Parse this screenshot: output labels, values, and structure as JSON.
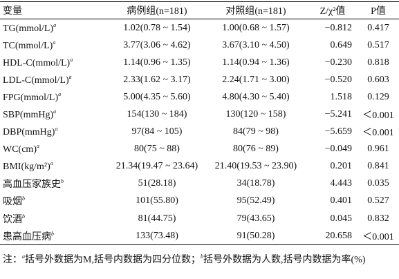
{
  "table": {
    "header": [
      "变量",
      "病例组(n=181)",
      "对照组(n=181)",
      "Z/χ²值",
      "P值"
    ],
    "rows": [
      [
        {
          "name": "TG(mmol/L)",
          "note": "a"
        },
        "1.02(0.78 ~ 1.54)",
        "1.00(0.68 ~ 1.57)",
        "−0.812",
        "0.417"
      ],
      [
        {
          "name": "TC(mmol/L)",
          "note": "a"
        },
        "3.77(3.06 ~ 4.62)",
        "3.67(3.10 ~ 4.50)",
        "0.649",
        "0.517"
      ],
      [
        {
          "name": "HDL-C(mmol/L)",
          "note": "a"
        },
        "1.14(0.96 ~ 1.35)",
        "1.14(0.94 ~ 1.36)",
        "−0.230",
        "0.818"
      ],
      [
        {
          "name": "LDL-C(mmol/L)",
          "note": "a"
        },
        "2.33(1.62 ~ 3.17)",
        "2.24(1.71 ~ 3.00)",
        "−0.520",
        "0.603"
      ],
      [
        {
          "name": "FPG(mmol/L)",
          "note": "a"
        },
        "5.00(4.35 ~ 5.60)",
        "4.80(4.30 ~ 5.40)",
        "1.518",
        "0.129"
      ],
      [
        {
          "name": "SBP(mmHg)",
          "note": "a"
        },
        "154(130 ~ 184)",
        "130(120 ~ 158)",
        "−5.241",
        "＜0.001"
      ],
      [
        {
          "name": "DBP(mmHg)",
          "note": "a"
        },
        "97(84 ~ 105)",
        "84(79 ~ 98)",
        "−5.659",
        "＜0.001"
      ],
      [
        {
          "name": "WC(cm)",
          "note": "a"
        },
        "80(75 ~ 88)",
        "80(76 ~ 89)",
        "−0.049",
        "0.961"
      ],
      [
        {
          "name": "BMI(kg/m²)",
          "note": "a"
        },
        "21.34(19.47 ~ 23.64)",
        "21.40(19.53 ~ 23.90)",
        "0.201",
        "0.841"
      ],
      [
        {
          "name": "高血压家族史",
          "note": "b"
        },
        "51(28.18)",
        "34(18.78)",
        "4.443",
        "0.035"
      ],
      [
        {
          "name": "吸烟",
          "note": "b"
        },
        "101(55.80)",
        "95(52.49)",
        "0.401",
        "0.527"
      ],
      [
        {
          "name": "饮酒",
          "note": "b"
        },
        "81(44.75)",
        "79(43.65)",
        "0.045",
        "0.832"
      ],
      [
        {
          "name": "患高血压病",
          "note": "b"
        },
        "133(73.48)",
        "91(50.28)",
        "20.658",
        "＜0.001"
      ]
    ]
  },
  "footnote": {
    "prefix": "注：",
    "items": [
      {
        "mark": "a",
        "text": "括号外数据为M,括号内数据为四分位数；"
      },
      {
        "mark": "b",
        "text": "括号外数据为人数,括号内数据为率(%)"
      }
    ]
  }
}
